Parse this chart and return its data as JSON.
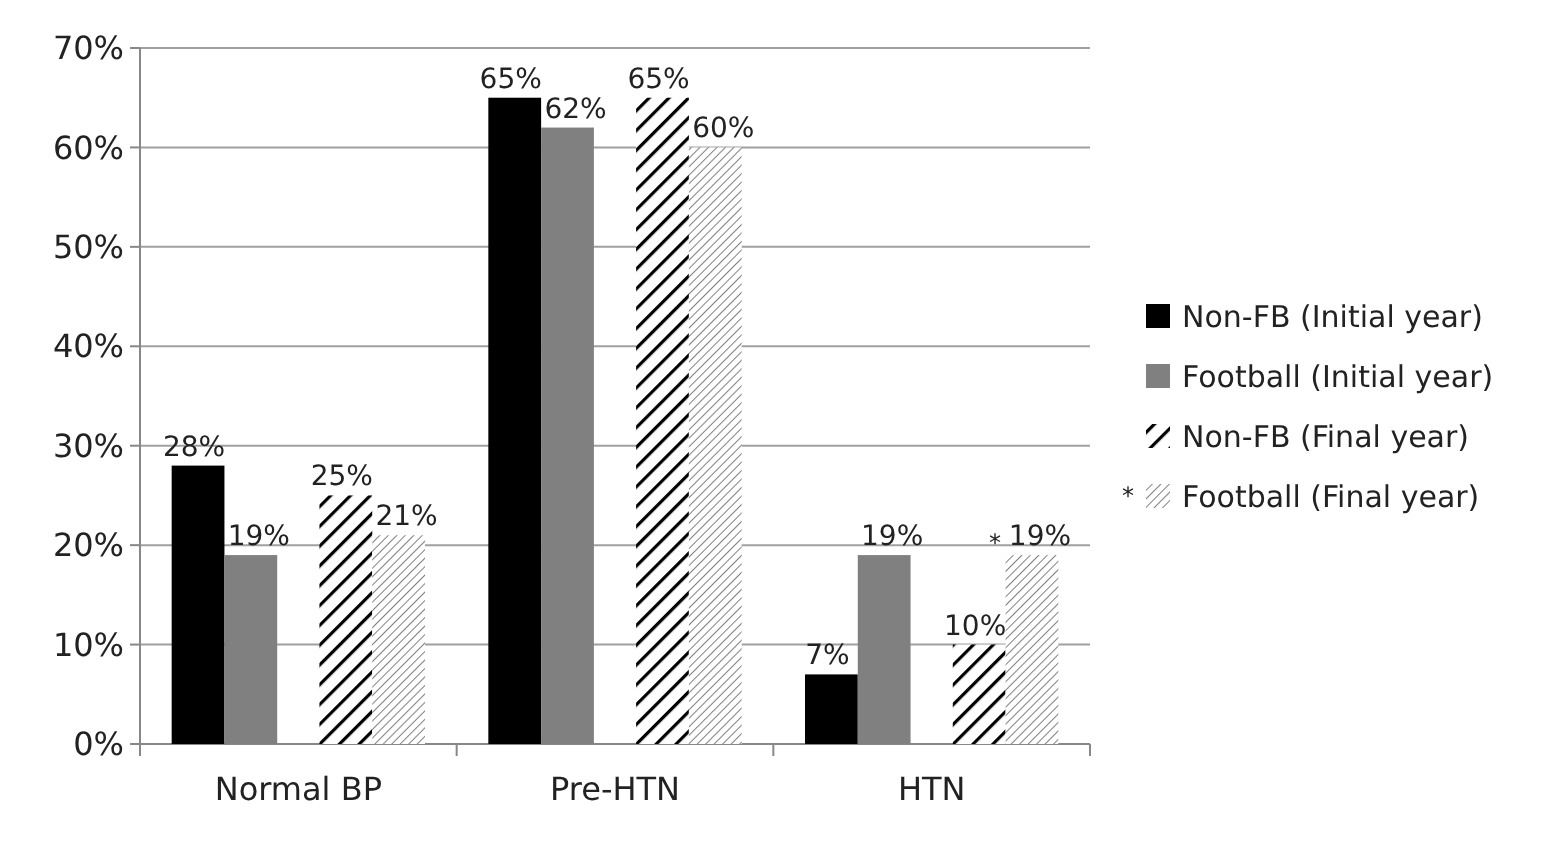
{
  "chart_data": {
    "type": "bar",
    "categories": [
      "Normal BP",
      "Pre-HTN",
      "HTN"
    ],
    "series": [
      {
        "name": "Non-FB (Initial year)",
        "color": "#000000",
        "values": [
          28,
          65,
          7
        ],
        "value_labels": [
          "28%",
          "65%",
          "7%"
        ]
      },
      {
        "name": "Football (Initial year)",
        "color": "#808080",
        "values": [
          19,
          62,
          19
        ],
        "value_labels": [
          "19%",
          "62%",
          "19%"
        ]
      },
      {
        "name": "Non-FB (Final year)",
        "color": "#000000",
        "values": [
          25,
          65,
          10
        ],
        "value_labels": [
          "25%",
          "65%",
          "10%"
        ]
      },
      {
        "name": "Football (Final year)",
        "color": "#808080",
        "values": [
          21,
          60,
          19
        ],
        "value_labels": [
          "21%",
          "60%",
          "19%"
        ]
      }
    ],
    "ylim": [
      0,
      70
    ],
    "yticks": [
      {
        "value": 0,
        "label": "0%"
      },
      {
        "value": 10,
        "label": "10%"
      },
      {
        "value": 20,
        "label": "20%"
      },
      {
        "value": 30,
        "label": "30%"
      },
      {
        "value": 40,
        "label": "40%"
      },
      {
        "value": 50,
        "label": "50%"
      },
      {
        "value": 60,
        "label": "60%"
      },
      {
        "value": 70,
        "label": "70%"
      }
    ],
    "grid": "y",
    "legend": "right",
    "annotations": [
      "*",
      "*"
    ]
  }
}
